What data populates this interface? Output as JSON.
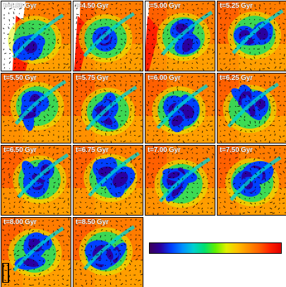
{
  "panels": [
    {
      "label": "t=4.00 Gyr",
      "vfrac": 0.15,
      "white": 0.35
    },
    {
      "label": "t=4.50 Gyr",
      "vfrac": 0.2,
      "white": 0.1
    },
    {
      "label": "t=5.00 Gyr",
      "vfrac": 0.3,
      "white": 0.05
    },
    {
      "label": "t=5.25 Gyr",
      "vfrac": 0.35,
      "white": 0.0
    },
    {
      "label": "t=5.50 Gyr",
      "vfrac": 0.4,
      "white": 0.0
    },
    {
      "label": "t=5.75 Gyr",
      "vfrac": 0.45,
      "white": 0.0
    },
    {
      "label": "t=6.00 Gyr",
      "vfrac": 0.45,
      "white": 0.0
    },
    {
      "label": "t=6.25 Gyr",
      "vfrac": 0.45,
      "white": 0.0
    },
    {
      "label": "t=6.50 Gyr",
      "vfrac": 0.5,
      "white": 0.0
    },
    {
      "label": "t=6.75 Gyr",
      "vfrac": 0.5,
      "white": 0.0
    },
    {
      "label": "t=7.00 Gyr",
      "vfrac": 0.45,
      "white": 0.0
    },
    {
      "label": "t=7.50 Gyr",
      "vfrac": 0.5,
      "white": 0.0
    },
    {
      "label": "t=8.00 Gyr",
      "vfrac": 0.45,
      "white": 0.0
    },
    {
      "label": "t=8.50 Gyr",
      "vfrac": 0.45,
      "white": 0.0
    }
  ],
  "colors": {
    "colorbar": [
      "#3a005a",
      "#2a00a0",
      "#0040ff",
      "#0090ff",
      "#00d0d0",
      "#00e070",
      "#60f000",
      "#e0f000",
      "#ffc000",
      "#ff9000",
      "#ff6000",
      "#ff2000",
      "#e00000"
    ],
    "background": "#ffffff"
  }
}
